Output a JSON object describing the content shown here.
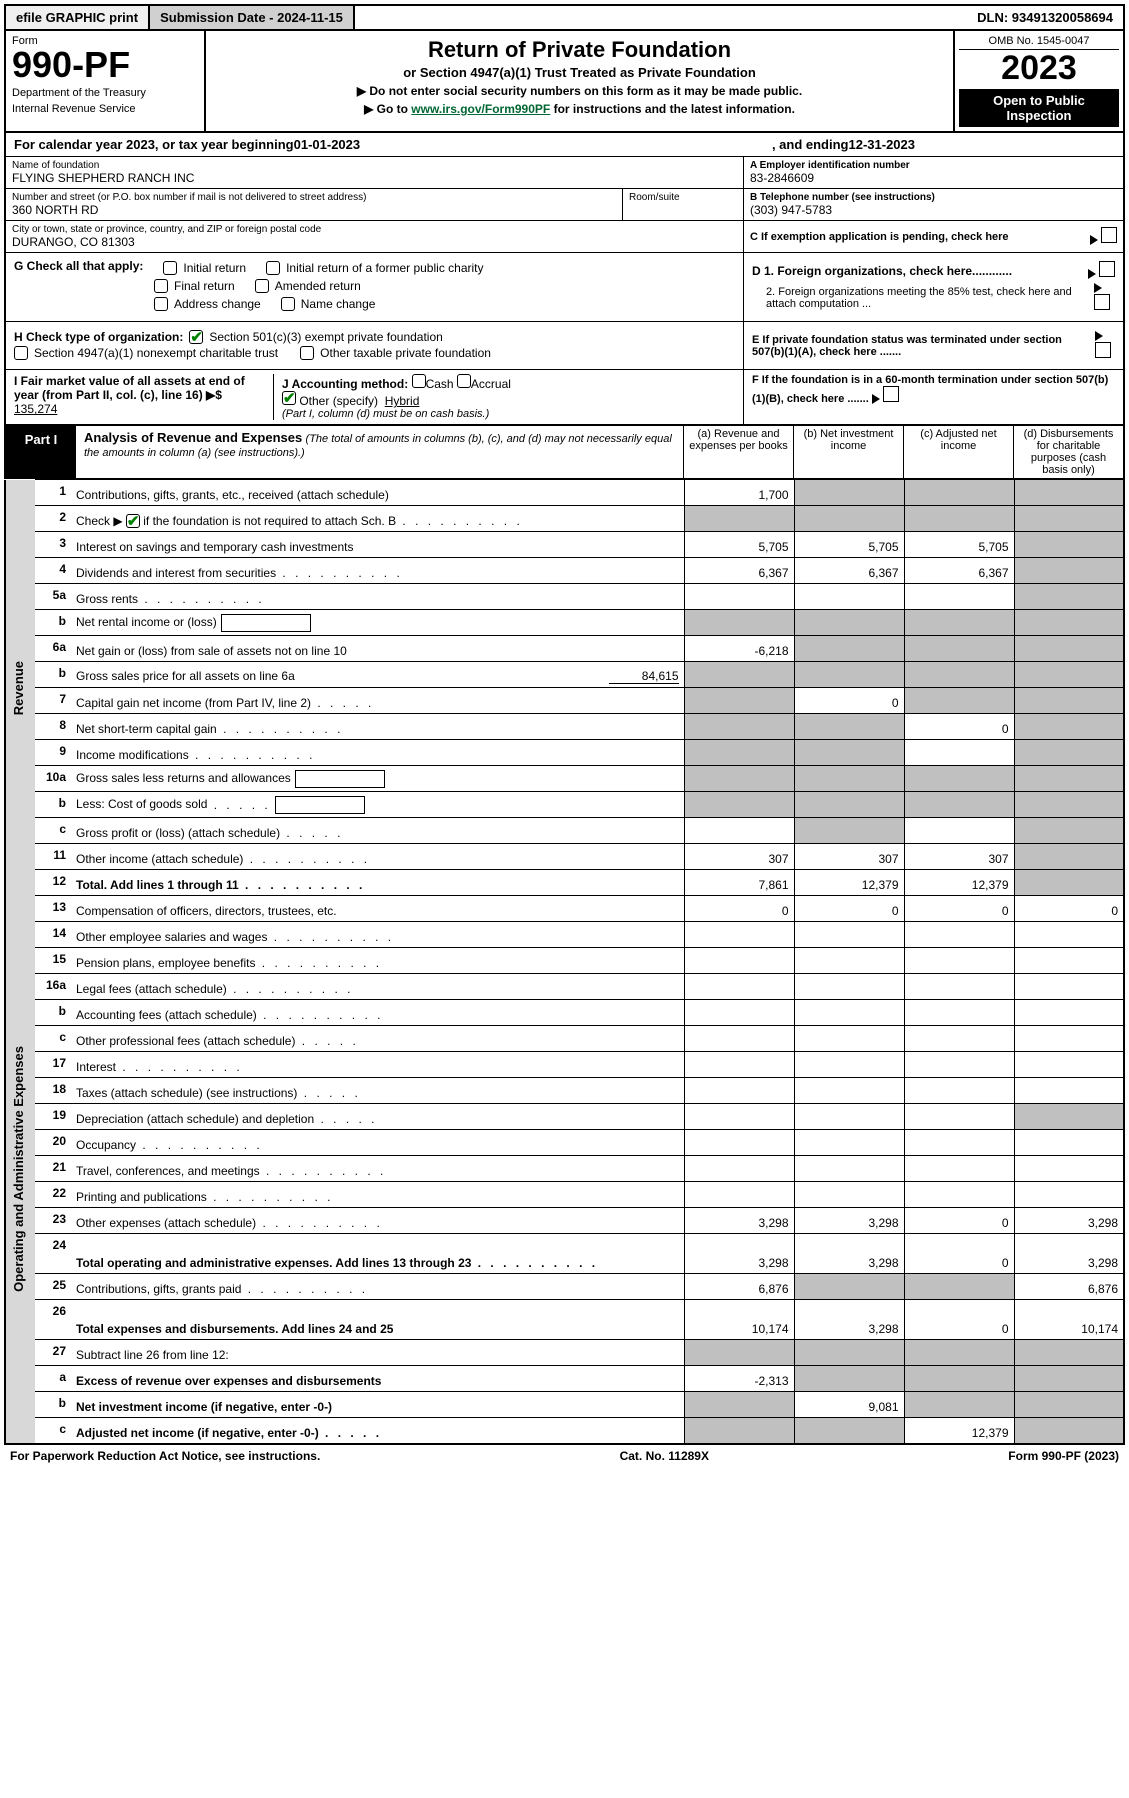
{
  "top_bar": {
    "efile": "efile GRAPHIC print",
    "submission": "Submission Date - 2024-11-15",
    "dln": "DLN: 93491320058694"
  },
  "header": {
    "form_label": "Form",
    "form_number": "990-PF",
    "dept": "Department of the Treasury",
    "irs": "Internal Revenue Service",
    "title": "Return of Private Foundation",
    "subtitle": "or Section 4947(a)(1) Trust Treated as Private Foundation",
    "note1": "▶ Do not enter social security numbers on this form as it may be made public.",
    "note2_pre": "▶ Go to ",
    "note2_link": "www.irs.gov/Form990PF",
    "note2_post": " for instructions and the latest information.",
    "omb": "OMB No. 1545-0047",
    "year": "2023",
    "inspect": "Open to Public Inspection"
  },
  "cal_year": {
    "pre": "For calendar year 2023, or tax year beginning ",
    "begin": "01-01-2023",
    "mid": " , and ending ",
    "end": "12-31-2023"
  },
  "info": {
    "name_label": "Name of foundation",
    "name": "FLYING SHEPHERD RANCH INC",
    "addr_label": "Number and street (or P.O. box number if mail is not delivered to street address)",
    "addr": "360 NORTH RD",
    "room_label": "Room/suite",
    "city_label": "City or town, state or province, country, and ZIP or foreign postal code",
    "city": "DURANGO, CO  81303",
    "a_label": "A Employer identification number",
    "a_val": "83-2846609",
    "b_label": "B Telephone number (see instructions)",
    "b_val": "(303) 947-5783",
    "c_label": "C If exemption application is pending, check here"
  },
  "checks": {
    "g_label": "G Check all that apply:",
    "g1": "Initial return",
    "g2": "Initial return of a former public charity",
    "g3": "Final return",
    "g4": "Amended return",
    "g5": "Address change",
    "g6": "Name change",
    "d1": "D 1. Foreign organizations, check here............",
    "d2": "2. Foreign organizations meeting the 85% test, check here and attach computation ...",
    "e": "E  If private foundation status was terminated under section 507(b)(1)(A), check here .......",
    "h_label": "H Check type of organization:",
    "h1": "Section 501(c)(3) exempt private foundation",
    "h2": "Section 4947(a)(1) nonexempt charitable trust",
    "h3": "Other taxable private foundation",
    "i_label": "I Fair market value of all assets at end of year (from Part II, col. (c), line 16) ▶$ ",
    "i_val": "135,274",
    "j_label": "J Accounting method:",
    "j_cash": "Cash",
    "j_accrual": "Accrual",
    "j_other": "Other (specify)",
    "j_other_val": "Hybrid",
    "j_note": "(Part I, column (d) must be on cash basis.)",
    "f": "F  If the foundation is in a 60-month termination under section 507(b)(1)(B), check here ......."
  },
  "part1": {
    "label": "Part I",
    "title": "Analysis of Revenue and Expenses",
    "title_note": " (The total of amounts in columns (b), (c), and (d) may not necessarily equal the amounts in column (a) (see instructions).)",
    "col_a": "(a)   Revenue and expenses per books",
    "col_b": "(b)   Net investment income",
    "col_c": "(c)   Adjusted net income",
    "col_d": "(d)   Disbursements for charitable purposes (cash basis only)"
  },
  "sides": {
    "revenue": "Revenue",
    "expenses": "Operating and Administrative Expenses"
  },
  "rows": [
    {
      "n": "1",
      "desc": "Contributions, gifts, grants, etc., received (attach schedule)",
      "a": "1,700",
      "b": "",
      "c": "",
      "d": "",
      "dgrey": true,
      "bgrey": true,
      "cgrey": true
    },
    {
      "n": "2",
      "desc": "Check ▶ ☑ if the foundation is not required to attach Sch. B",
      "dots": true,
      "allgrey": true
    },
    {
      "n": "3",
      "desc": "Interest on savings and temporary cash investments",
      "a": "5,705",
      "b": "5,705",
      "c": "5,705",
      "dgrey": true
    },
    {
      "n": "4",
      "desc": "Dividends and interest from securities",
      "dots": true,
      "a": "6,367",
      "b": "6,367",
      "c": "6,367",
      "dgrey": true
    },
    {
      "n": "5a",
      "desc": "Gross rents",
      "dots": true,
      "dgrey": true
    },
    {
      "n": "b",
      "desc": "Net rental income or (loss)",
      "box": true,
      "allgrey": true
    },
    {
      "n": "6a",
      "desc": "Net gain or (loss) from sale of assets not on line 10",
      "a": "-6,218",
      "bgrey": true,
      "cgrey": true,
      "dgrey": true
    },
    {
      "n": "b",
      "desc": "Gross sales price for all assets on line 6a",
      "inline_val": "84,615",
      "allgrey": true
    },
    {
      "n": "7",
      "desc": "Capital gain net income (from Part IV, line 2)",
      "dots_s": true,
      "agrey": true,
      "b": "0",
      "cgrey": true,
      "dgrey": true
    },
    {
      "n": "8",
      "desc": "Net short-term capital gain",
      "dots": true,
      "agrey": true,
      "bgrey": true,
      "c": "0",
      "dgrey": true
    },
    {
      "n": "9",
      "desc": "Income modifications",
      "dots": true,
      "agrey": true,
      "bgrey": true,
      "dgrey": true
    },
    {
      "n": "10a",
      "desc": "Gross sales less returns and allowances",
      "box": true,
      "allgrey": true
    },
    {
      "n": "b",
      "desc": "Less: Cost of goods sold",
      "dots_s": true,
      "box": true,
      "allgrey": true
    },
    {
      "n": "c",
      "desc": "Gross profit or (loss) (attach schedule)",
      "dots_s": true,
      "bgrey": true,
      "dgrey": true
    },
    {
      "n": "11",
      "desc": "Other income (attach schedule)",
      "dots": true,
      "a": "307",
      "b": "307",
      "c": "307",
      "dgrey": true
    },
    {
      "n": "12",
      "desc": "Total. Add lines 1 through 11",
      "dots": true,
      "bold": true,
      "a": "7,861",
      "b": "12,379",
      "c": "12,379",
      "dgrey": true
    }
  ],
  "exp_rows": [
    {
      "n": "13",
      "desc": "Compensation of officers, directors, trustees, etc.",
      "a": "0",
      "b": "0",
      "c": "0",
      "d": "0"
    },
    {
      "n": "14",
      "desc": "Other employee salaries and wages",
      "dots": true
    },
    {
      "n": "15",
      "desc": "Pension plans, employee benefits",
      "dots": true
    },
    {
      "n": "16a",
      "desc": "Legal fees (attach schedule)",
      "dots": true
    },
    {
      "n": "b",
      "desc": "Accounting fees (attach schedule)",
      "dots": true
    },
    {
      "n": "c",
      "desc": "Other professional fees (attach schedule)",
      "dots_s": true
    },
    {
      "n": "17",
      "desc": "Interest",
      "dots": true
    },
    {
      "n": "18",
      "desc": "Taxes (attach schedule) (see instructions)",
      "dots_s": true
    },
    {
      "n": "19",
      "desc": "Depreciation (attach schedule) and depletion",
      "dots_s": true,
      "dgrey": true
    },
    {
      "n": "20",
      "desc": "Occupancy",
      "dots": true
    },
    {
      "n": "21",
      "desc": "Travel, conferences, and meetings",
      "dots": true
    },
    {
      "n": "22",
      "desc": "Printing and publications",
      "dots": true
    },
    {
      "n": "23",
      "desc": "Other expenses (attach schedule)",
      "dots": true,
      "a": "3,298",
      "b": "3,298",
      "c": "0",
      "d": "3,298"
    },
    {
      "n": "24",
      "desc": "Total operating and administrative expenses. Add lines 13 through 23",
      "dots": true,
      "bold": true,
      "a": "3,298",
      "b": "3,298",
      "c": "0",
      "d": "3,298",
      "tall": true
    },
    {
      "n": "25",
      "desc": "Contributions, gifts, grants paid",
      "dots": true,
      "a": "6,876",
      "bgrey": true,
      "cgrey": true,
      "d": "6,876"
    },
    {
      "n": "26",
      "desc": "Total expenses and disbursements. Add lines 24 and 25",
      "bold": true,
      "a": "10,174",
      "b": "3,298",
      "c": "0",
      "d": "10,174",
      "tall": true
    }
  ],
  "final_rows": [
    {
      "n": "27",
      "desc": "Subtract line 26 from line 12:",
      "allgrey": true
    },
    {
      "n": "a",
      "desc": "Excess of revenue over expenses and disbursements",
      "bold": true,
      "a": "-2,313",
      "bgrey": true,
      "cgrey": true,
      "dgrey": true
    },
    {
      "n": "b",
      "desc": "Net investment income (if negative, enter -0-)",
      "bold": true,
      "agrey": true,
      "b": "9,081",
      "cgrey": true,
      "dgrey": true
    },
    {
      "n": "c",
      "desc": "Adjusted net income (if negative, enter -0-)",
      "dots_s": true,
      "bold": true,
      "agrey": true,
      "bgrey": true,
      "c": "12,379",
      "dgrey": true
    }
  ],
  "footer": {
    "left": "For Paperwork Reduction Act Notice, see instructions.",
    "mid": "Cat. No. 11289X",
    "right": "Form 990-PF (2023)"
  }
}
